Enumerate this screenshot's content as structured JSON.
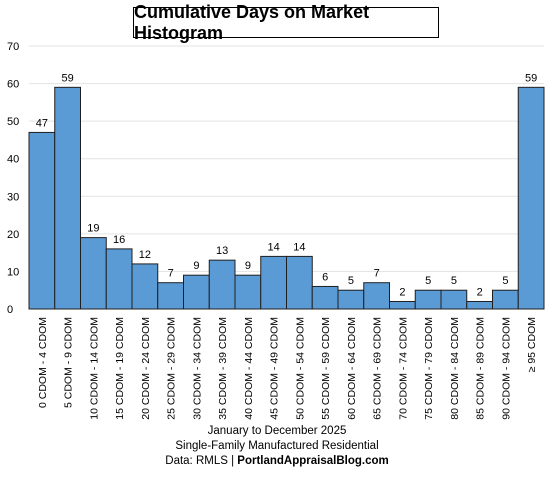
{
  "chart_data": {
    "type": "bar",
    "title": "Cumulative Days on Market Histogram",
    "categories": [
      "0 CDOM - 4 CDOM",
      "5 CDOM - 9 CDOM",
      "10 CDOM - 14 CDOM",
      "15 CDOM - 19 CDOM",
      "20 CDOM - 24 CDOM",
      "25 CDOM - 29 CDOM",
      "30 CDOM - 34 CDOM",
      "35 CDOM - 39 CDOM",
      "40 CDOM - 44 CDOM",
      "45 CDOM - 49 CDOM",
      "50 CDOM - 54 CDOM",
      "55 CDOM - 59 CDOM",
      "60 CDOM - 64 CDOM",
      "65 CDOM - 69 CDOM",
      "70 CDOM - 74 CDOM",
      "75 CDOM - 79 CDOM",
      "80 CDOM - 84 CDOM",
      "85 CDOM - 89 CDOM",
      "90 CDOM - 94 CDOM",
      "≥ 95 CDOM"
    ],
    "values": [
      47,
      59,
      19,
      16,
      12,
      7,
      9,
      13,
      9,
      14,
      14,
      6,
      5,
      7,
      2,
      5,
      5,
      2,
      5,
      59
    ],
    "ylim": [
      0,
      70
    ],
    "yticks": [
      0,
      10,
      20,
      30,
      40,
      50,
      60,
      70
    ],
    "grid": true,
    "bar_color": "#5b9bd5",
    "bar_edge_color": "#1f1f1f"
  },
  "footer": {
    "line1": "January to December 2025",
    "line2": "Single-Family Manufactured Residential",
    "line3_prefix": "Data: RMLS | ",
    "line3_bold": "PortlandAppraisalBlog.com"
  }
}
